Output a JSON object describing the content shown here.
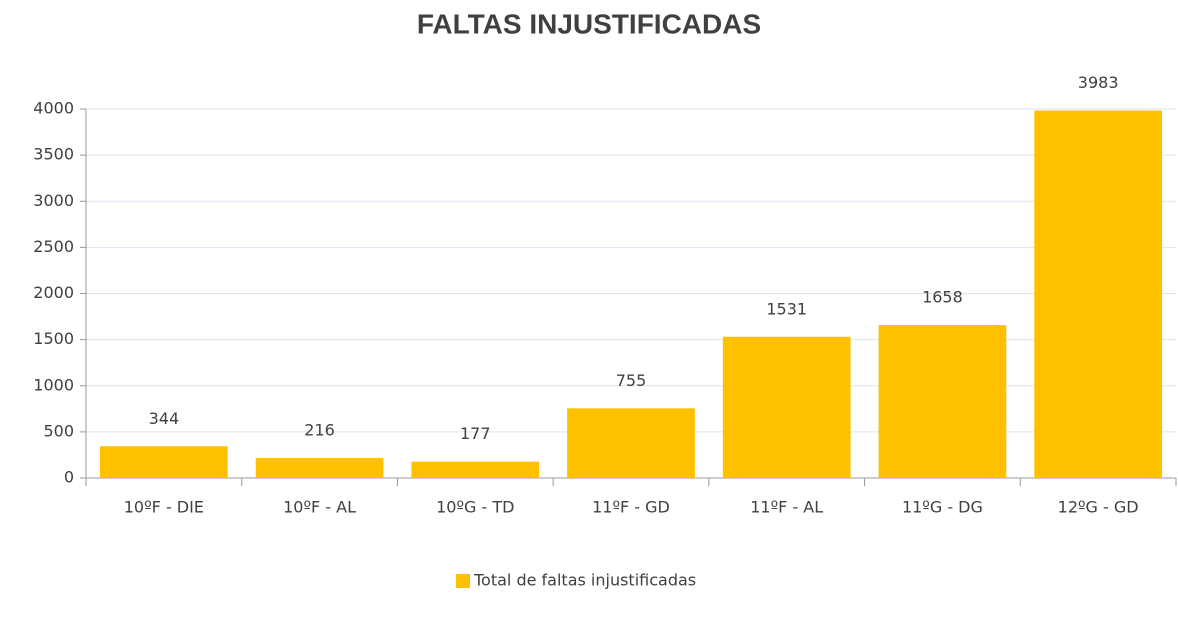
{
  "chart_data": {
    "type": "bar",
    "title": "FALTAS INJUSTIFICADAS",
    "categories": [
      "10ºF - DIE",
      "10ºF - AL",
      "10ºG - TD",
      "11ºF - GD",
      "11ºF - AL",
      "11ºG - DG",
      "12ºG - GD"
    ],
    "series": [
      {
        "name": "Total de faltas injustificadas",
        "color": "#ffc000",
        "values": [
          344,
          216,
          177,
          755,
          1531,
          1658,
          3983
        ]
      }
    ],
    "ylim": [
      0,
      4000
    ],
    "yticks": [
      0,
      500,
      1000,
      1500,
      2000,
      2500,
      3000,
      3500,
      4000
    ],
    "grid": true,
    "legend": "bottom"
  }
}
